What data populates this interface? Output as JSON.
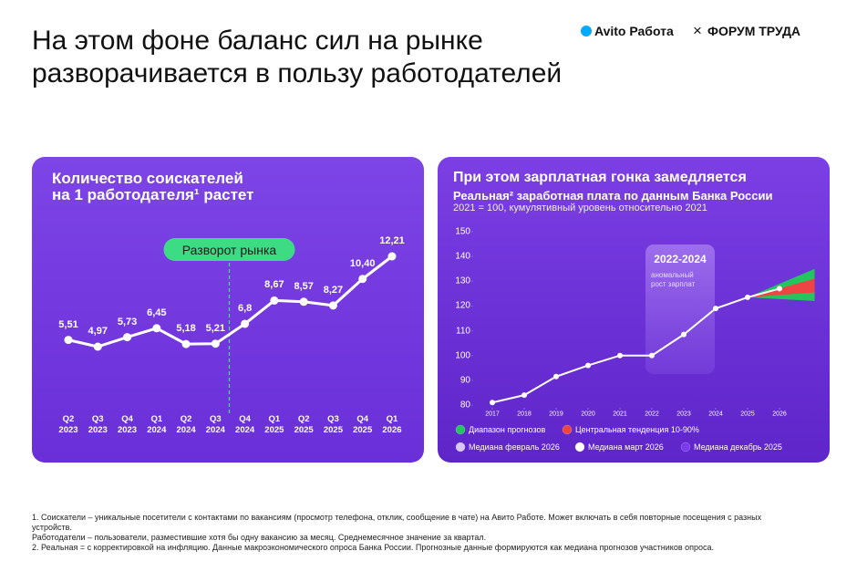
{
  "heading": [
    "На этом фоне баланс сил на рынке",
    "разворачивается в пользу работодателей"
  ],
  "logo": {
    "left": "Avito Работа",
    "sep": "×",
    "right": "ФОРУМ ТРУДА"
  },
  "chart_data": [
    {
      "type": "line",
      "title": [
        "Количество соискателей",
        "на 1 работодателя¹ растет"
      ],
      "categories": [
        "Q2 2023",
        "Q3 2023",
        "Q4 2023",
        "Q1 2024",
        "Q2 2024",
        "Q3 2024",
        "Q4 2024",
        "Q1 2025",
        "Q2 2025",
        "Q3 2025",
        "Q4 2025",
        "Q1 2026"
      ],
      "values": [
        5.51,
        4.97,
        5.73,
        6.45,
        5.18,
        5.21,
        6.8,
        8.67,
        8.57,
        8.27,
        10.4,
        12.21
      ],
      "value_labels": [
        "5,51",
        "4,97",
        "5,73",
        "6,45",
        "5,18",
        "5,21",
        "6,8",
        "8,67",
        "8,57",
        "8,27",
        "10,40",
        "12,21"
      ],
      "color": "#ffffff",
      "annotation": {
        "text": "Разворот рынка",
        "color": "#3ddc84"
      }
    },
    {
      "type": "line",
      "title": "При этом зарплатная гонка замедляется",
      "subtitle": "Реальная² заработная плата по данным Банка России",
      "note": "2021 = 100, кумулятивный уровень относительно 2021",
      "x": [
        2017,
        2018,
        2019,
        2020,
        2021,
        2022,
        2023,
        2024,
        2025,
        2026
      ],
      "series": [
        {
          "color": "#ffffff",
          "values": [
            81,
            84,
            91.5,
            96,
            100,
            100,
            108.5,
            119,
            123.5,
            127
          ]
        }
      ],
      "bands": [
        {
          "name": "Диапазон прогнозов",
          "color": "#22c55e",
          "x": [
            2025,
            2027.1
          ],
          "low": [
            123.5,
            122
          ],
          "high": [
            123.5,
            135
          ]
        },
        {
          "name": "Центральная тенденция 10-90%",
          "color": "#ef4444",
          "x": [
            2025,
            2027.1
          ],
          "low": [
            123.5,
            125.5
          ],
          "high": [
            123.5,
            131
          ]
        }
      ],
      "markers": [
        {
          "name": "Медиана февраль 2026",
          "color": "#d9c6f7"
        },
        {
          "name": "Медиана март 2026",
          "color": "#ffffff"
        },
        {
          "name": "Медиана декабрь 2025",
          "color": "#7c3aed"
        }
      ],
      "annotation": {
        "title": "2022-2024",
        "text": "аномальный рост зарплат"
      },
      "xlim": [
        2016.4,
        2027.1
      ],
      "ylim": [
        80,
        150
      ],
      "xticks": [
        2017,
        2018,
        2019,
        2020,
        2021,
        2022,
        2023,
        2024,
        2025,
        2026
      ],
      "yticks": [
        80,
        90,
        100,
        110,
        120,
        130,
        140,
        150
      ]
    }
  ],
  "footnotes": [
    "1. Соискатели – уникальные посетители с контактами по вакансиям (просмотр телефона, отклик, сообщение в чате) на Авито Работе. Может включать в себя повторные посещения с разных устройств.",
    "Работодатели – пользователи, разместившие хотя бы одну вакансию за месяц. Среднемесячное значение за квартал.",
    "2. Реальная = с корректировкой на инфляцию. Данные макроэкономического опроса Банка России. Прогнозные данные формируются как медиана прогнозов участников опроса."
  ]
}
